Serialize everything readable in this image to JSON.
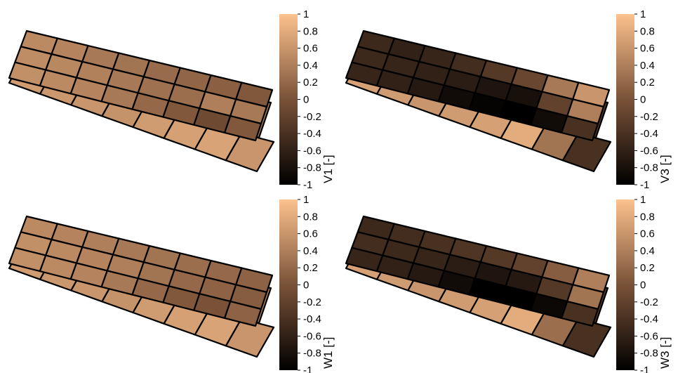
{
  "colormap": {
    "stops": [
      "#000000",
      "#7a5238",
      "#fcc28e"
    ],
    "range": [
      -1,
      1
    ]
  },
  "chart_data": [
    {
      "type": "heatmap",
      "colorbar_label": "V1 [-]",
      "colorbar_ticks": [
        "1",
        "0.8",
        "0.6",
        "0.4",
        "0.2",
        "0",
        "-0.2",
        "-0.4",
        "-0.6",
        "-0.8",
        "-1"
      ],
      "clim": [
        -1,
        1
      ],
      "layers": {
        "top": [
          [
            0.5,
            0.45,
            0.35,
            0.3,
            0.22,
            0.18,
            0.12,
            0.05
          ],
          [
            0.52,
            0.48,
            0.42,
            0.35,
            0.28,
            0.25,
            0.4,
            0.35
          ],
          [
            0.55,
            0.5,
            0.45,
            0.35,
            0.2,
            0.05,
            -0.1,
            0.05
          ]
        ],
        "middle": [
          0.6,
          0.55,
          0.5,
          0.45,
          0.4,
          0.3,
          0.15,
          0.35
        ],
        "bottom": [
          0.65,
          0.62,
          0.6,
          0.58,
          0.65,
          0.7,
          0.72,
          0.6
        ]
      }
    },
    {
      "type": "heatmap",
      "colorbar_label": "V3 [-]",
      "colorbar_ticks": [
        "1",
        "0.8",
        "0.6",
        "0.4",
        "0.2",
        "0",
        "-0.2",
        "-0.4",
        "-0.6",
        "-0.8",
        "-1"
      ],
      "clim": [
        -1,
        1
      ],
      "layers": {
        "top": [
          [
            -0.5,
            -0.6,
            -0.55,
            -0.45,
            -0.3,
            -0.15,
            0.35,
            0.6
          ],
          [
            -0.5,
            -0.55,
            -0.6,
            -0.65,
            -0.75,
            -0.8,
            -0.2,
            0.4
          ],
          [
            -0.55,
            -0.6,
            -0.7,
            -0.85,
            -0.95,
            -1.0,
            -0.85,
            -0.4
          ]
        ],
        "middle": [
          -0.4,
          -0.45,
          -0.55,
          -0.65,
          -0.8,
          -0.85,
          -0.5,
          -0.3
        ],
        "bottom": [
          0.7,
          0.65,
          0.6,
          0.65,
          0.7,
          0.8,
          0.3,
          -0.4
        ]
      }
    },
    {
      "type": "heatmap",
      "colorbar_label": "W1 [-]",
      "colorbar_ticks": [
        "1",
        "0.8",
        "0.6",
        "0.4",
        "0.2",
        "0",
        "-0.2",
        "-0.4",
        "-0.6",
        "-0.8",
        "-1"
      ],
      "clim": [
        -1,
        1
      ],
      "layers": {
        "top": [
          [
            0.5,
            0.45,
            0.4,
            0.35,
            0.3,
            0.25,
            0.2,
            0.15
          ],
          [
            0.55,
            0.5,
            0.45,
            0.4,
            0.3,
            0.2,
            0.15,
            0.1
          ],
          [
            0.55,
            0.5,
            0.45,
            0.35,
            0.2,
            0.05,
            0.0,
            0.15
          ]
        ],
        "middle": [
          0.6,
          0.55,
          0.5,
          0.45,
          0.4,
          0.3,
          0.2,
          0.4
        ],
        "bottom": [
          0.65,
          0.62,
          0.6,
          0.58,
          0.65,
          0.7,
          0.72,
          0.6
        ]
      }
    },
    {
      "type": "heatmap",
      "colorbar_label": "W3 [-]",
      "colorbar_ticks": [
        "1",
        "0.8",
        "0.6",
        "0.4",
        "0.2",
        "0",
        "-0.2",
        "-0.4",
        "-0.6",
        "-0.8",
        "-1"
      ],
      "clim": [
        -1,
        1
      ],
      "layers": {
        "top": [
          [
            -0.5,
            -0.45,
            -0.4,
            -0.35,
            -0.3,
            -0.2,
            0.1,
            0.4
          ],
          [
            -0.45,
            -0.5,
            -0.55,
            -0.65,
            -0.75,
            -0.7,
            -0.3,
            0.3
          ],
          [
            -0.55,
            -0.6,
            -0.7,
            -0.85,
            -1.0,
            -1.0,
            -0.9,
            -0.4
          ]
        ],
        "middle": [
          -0.4,
          -0.45,
          -0.55,
          -0.65,
          -0.85,
          -0.9,
          -0.55,
          -0.3
        ],
        "bottom": [
          0.7,
          0.65,
          0.6,
          0.65,
          0.7,
          0.8,
          0.25,
          -0.4
        ]
      }
    }
  ]
}
